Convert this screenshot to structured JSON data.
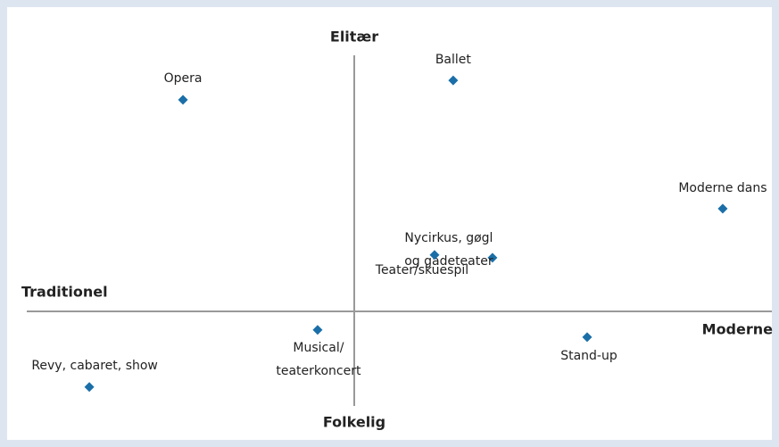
{
  "chart_data": {
    "type": "scatter",
    "x_axis_labels": [
      "Traditionel",
      "Moderne"
    ],
    "y_axis_labels": [
      "Folkelig",
      "Elitær"
    ],
    "labels": [
      [
        "Opera"
      ],
      [
        "Ballet"
      ],
      [
        "Moderne dans"
      ],
      [
        "Nycirkus, gøgl",
        "og gadeteater"
      ],
      [
        "Teater/skuespil"
      ],
      [
        "Musical/",
        "teaterkoncert"
      ],
      [
        "Stand-up"
      ],
      [
        "Revy, cabaret, show"
      ]
    ],
    "x": [
      -5.23,
      3.02,
      11.25,
      4.22,
      2.45,
      -1.12,
      7.11,
      -8.09
    ],
    "series": [
      {
        "color": "#1b6fa8",
        "values": [
          8.26,
          9.02,
          4.01,
          2.09,
          2.2,
          -0.73,
          -1.01,
          -2.96
        ]
      }
    ],
    "xlim": [
      -10,
      12.75
    ],
    "ylim": [
      -3.7,
      10
    ]
  }
}
